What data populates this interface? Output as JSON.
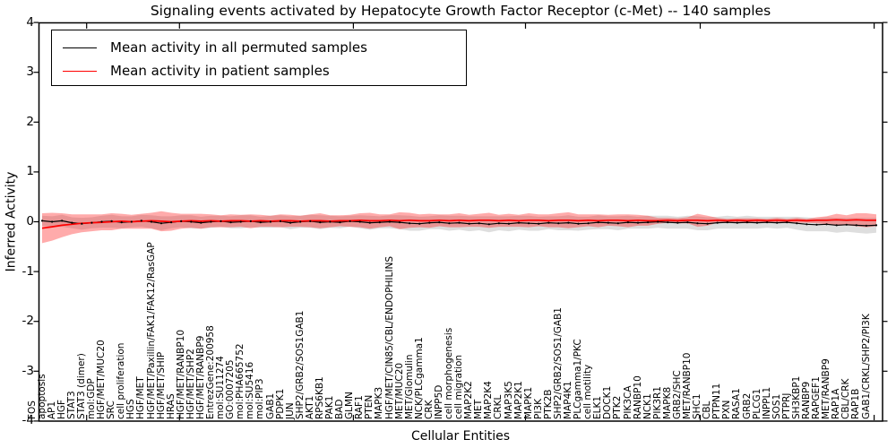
{
  "chart_data": {
    "type": "line",
    "title": "Signaling events activated by Hepatocyte Growth Factor Receptor (c-Met) -- 140 samples",
    "xlabel": "Cellular Entities",
    "ylabel": "Inferred Activity",
    "ylim": [
      -4,
      4
    ],
    "yticks": [
      "-4",
      "-3",
      "-2",
      "-1",
      "0",
      "1",
      "2",
      "3",
      "4"
    ],
    "grid": false,
    "legend_position": "upper left",
    "legend": [
      "Mean activity in all permuted samples",
      "Mean activity in patient samples"
    ],
    "categories": [
      "FOS",
      "apoptosis",
      "AP1",
      "HGF",
      "STAT3",
      "STAT3 (dimer)",
      "mol:GDP",
      "HGF/MET/MUC20",
      "SRC",
      "cell proliferation",
      "HGS",
      "HGF/MET",
      "HGF/MET/Paxillin/FAK1/FAK12/RasGAP",
      "HGF/MET/SHIP",
      "HRAS",
      "HGF/MET/RANBP10",
      "HGF/MET/SHP2",
      "HGF/MET/RANBP9",
      "EntrezGene:200958",
      "mol:SU11274",
      "GO:0007205",
      "mol:PHA665752",
      "mol:SU5416",
      "mol:PIP3",
      "GAB1",
      "PDPK1",
      "JUN",
      "SHP2/GRB2/SOS1GAB1",
      "AKT1",
      "RPS6KB1",
      "PAK1",
      "BAD",
      "GLMN",
      "RAF1",
      "PTEN",
      "MAPK3",
      "HGF/MET/CIN85/CBL/ENDOPHILINS",
      "MET/MUC20",
      "MET/Glomulin",
      "NCK/PLCgamma1",
      "CRK",
      "INPP5D",
      "cell morphogenesis",
      "cell migration",
      "MAP2K2",
      "MET",
      "MAP2K4",
      "CRKL",
      "MAP3K5",
      "MAP2K1",
      "MAPK1",
      "PI3K",
      "PTK2B",
      "SHP2/GRB2/SOS1/GAB1",
      "MAP4K1",
      "PLCgamma1/PKC",
      "cell motility",
      "ELK1",
      "DOCK1",
      "PTK2",
      "PIK3CA",
      "RANBP10",
      "NCK1",
      "PIK3R1",
      "MAPK8",
      "GRB2/SHC",
      "MET/RANBP10",
      "SHC1",
      "CBL",
      "PTPN11",
      "PXN",
      "RASA1",
      "GRB2",
      "PLCG1",
      "INPPL1",
      "SOS1",
      "PTPRJ",
      "SH3KBP1",
      "RANBP9",
      "RAPGEF1",
      "MET/RANBP9",
      "RAP1A",
      "CBL/CRK",
      "RAP1B",
      "GAB1/CRKL/SHP2/PI3K"
    ],
    "series": [
      {
        "name": "Mean activity in all permuted samples",
        "color": "#000000",
        "band_color": "rgba(0,0,0,0.13)",
        "values": [
          0.02,
          0.0,
          0.02,
          -0.02,
          -0.04,
          -0.02,
          0.0,
          0.01,
          -0.01,
          0.0,
          0.02,
          0.0,
          -0.03,
          -0.01,
          0.01,
          0.0,
          -0.02,
          0.0,
          0.01,
          -0.01,
          0.0,
          0.01,
          -0.01,
          0.0,
          0.01,
          -0.02,
          0.0,
          0.01,
          -0.01,
          0.0,
          -0.01,
          0.01,
          0.0,
          -0.02,
          -0.01,
          0.0,
          -0.01,
          -0.03,
          -0.04,
          -0.02,
          -0.01,
          -0.03,
          -0.02,
          -0.04,
          -0.03,
          -0.05,
          -0.03,
          -0.04,
          -0.02,
          -0.03,
          -0.04,
          -0.02,
          -0.03,
          -0.02,
          -0.04,
          -0.03,
          -0.01,
          -0.02,
          -0.03,
          -0.01,
          -0.02,
          -0.01,
          0.0,
          -0.01,
          -0.02,
          -0.01,
          -0.03,
          -0.04,
          -0.02,
          -0.01,
          -0.02,
          -0.01,
          -0.02,
          -0.01,
          -0.02,
          -0.01,
          -0.03,
          -0.05,
          -0.06,
          -0.05,
          -0.07,
          -0.06,
          -0.07,
          -0.08,
          -0.07
        ],
        "band_halfwidth": [
          0.1,
          0.11,
          0.12,
          0.11,
          0.12,
          0.11,
          0.12,
          0.13,
          0.12,
          0.11,
          0.12,
          0.13,
          0.14,
          0.12,
          0.12,
          0.13,
          0.12,
          0.12,
          0.11,
          0.12,
          0.13,
          0.12,
          0.11,
          0.12,
          0.12,
          0.13,
          0.12,
          0.13,
          0.14,
          0.12,
          0.12,
          0.11,
          0.13,
          0.14,
          0.12,
          0.13,
          0.14,
          0.15,
          0.14,
          0.13,
          0.14,
          0.15,
          0.14,
          0.15,
          0.14,
          0.16,
          0.14,
          0.15,
          0.14,
          0.15,
          0.14,
          0.13,
          0.14,
          0.15,
          0.14,
          0.13,
          0.14,
          0.13,
          0.14,
          0.13,
          0.12,
          0.13,
          0.12,
          0.13,
          0.12,
          0.13,
          0.14,
          0.13,
          0.12,
          0.13,
          0.12,
          0.13,
          0.12,
          0.11,
          0.12,
          0.11,
          0.13,
          0.14,
          0.13,
          0.14,
          0.15,
          0.14,
          0.15,
          0.16,
          0.15
        ]
      },
      {
        "name": "Mean activity in patient samples",
        "color": "#ff0000",
        "band_color": "rgba(255,0,0,0.33)",
        "values": [
          -0.13,
          -0.1,
          -0.07,
          -0.05,
          -0.03,
          -0.02,
          -0.01,
          0.0,
          0.01,
          0.0,
          0.01,
          0.02,
          0.01,
          0.0,
          0.01,
          0.02,
          0.01,
          0.02,
          0.01,
          0.02,
          0.02,
          0.01,
          0.02,
          0.01,
          0.02,
          0.02,
          0.01,
          0.02,
          0.02,
          0.01,
          0.02,
          0.02,
          0.03,
          0.02,
          0.02,
          0.03,
          0.02,
          0.03,
          0.02,
          0.02,
          0.03,
          0.02,
          0.03,
          0.02,
          0.03,
          0.03,
          0.02,
          0.03,
          0.02,
          0.03,
          0.03,
          0.02,
          0.03,
          0.03,
          0.02,
          0.03,
          0.02,
          0.03,
          0.03,
          0.02,
          0.03,
          0.02,
          0.02,
          0.03,
          0.02,
          0.03,
          0.03,
          0.02,
          0.03,
          0.02,
          0.03,
          0.02,
          0.03,
          0.02,
          0.03,
          0.02,
          0.03,
          0.02,
          0.03,
          0.03,
          0.04,
          0.03,
          0.04,
          0.03,
          0.03
        ],
        "band_halfwidth": [
          0.3,
          0.28,
          0.24,
          0.2,
          0.18,
          0.17,
          0.16,
          0.17,
          0.15,
          0.14,
          0.15,
          0.16,
          0.2,
          0.18,
          0.15,
          0.14,
          0.15,
          0.13,
          0.12,
          0.13,
          0.12,
          0.14,
          0.12,
          0.11,
          0.13,
          0.12,
          0.11,
          0.13,
          0.15,
          0.12,
          0.11,
          0.12,
          0.14,
          0.16,
          0.13,
          0.12,
          0.17,
          0.15,
          0.13,
          0.14,
          0.12,
          0.13,
          0.14,
          0.12,
          0.13,
          0.15,
          0.12,
          0.13,
          0.12,
          0.14,
          0.12,
          0.13,
          0.14,
          0.16,
          0.13,
          0.12,
          0.13,
          0.11,
          0.12,
          0.13,
          0.11,
          0.1,
          0.06,
          0.05,
          0.05,
          0.06,
          0.13,
          0.1,
          0.05,
          0.04,
          0.04,
          0.05,
          0.04,
          0.04,
          0.05,
          0.04,
          0.05,
          0.04,
          0.06,
          0.08,
          0.12,
          0.1,
          0.13,
          0.14,
          0.12
        ]
      }
    ]
  }
}
